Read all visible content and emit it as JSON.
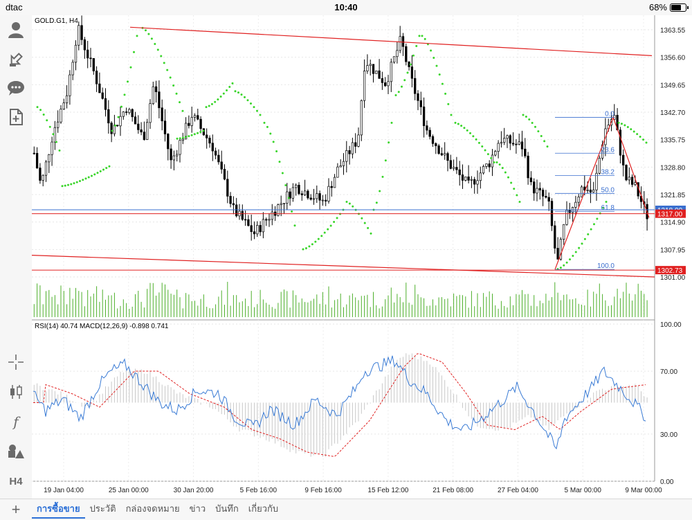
{
  "status_bar": {
    "carrier": "dtac",
    "time": "10:40",
    "battery": "68%",
    "battery_level": 0.68
  },
  "chart": {
    "symbol": "GOLD.G1, H4",
    "price_axis": [
      "1363.55",
      "1356.60",
      "1349.65",
      "1342.70",
      "1335.75",
      "1328.80",
      "1321.85",
      "1314.90",
      "1307.95",
      "1301.00"
    ],
    "price_tags": [
      {
        "value": 1318.0,
        "label": "1318.00",
        "color": "#3a6fcf"
      },
      {
        "value": 1317.0,
        "label": "1317.00",
        "color": "#e02020"
      },
      {
        "value": 1302.73,
        "label": "1302.73",
        "color": "#e02020"
      }
    ],
    "indicator_label": "RSI(14) 40.74 MACD(12,26,9) -0.898 0.741",
    "indicator_axis": [
      "100.00",
      "70.00",
      "30.00",
      "0.00"
    ],
    "time_axis": [
      "19 Jan 04:00",
      "25 Jan 00:00",
      "30 Jan 20:00",
      "5 Feb 16:00",
      "9 Feb 16:00",
      "15 Feb 12:00",
      "21 Feb 08:00",
      "27 Feb 04:00",
      "5 Mar 00:00",
      "9 Mar 00:00"
    ],
    "fibonacci": [
      "0.0",
      "23.6",
      "38.2",
      "50.0",
      "61.8",
      "100.0"
    ]
  },
  "tabs": [
    {
      "label": "การซื้อขาย",
      "active": true
    },
    {
      "label": "ประวัติ",
      "active": false
    },
    {
      "label": "กล่องจดหมาย",
      "active": false
    },
    {
      "label": "ข่าว",
      "active": false
    },
    {
      "label": "บันทึก",
      "active": false
    },
    {
      "label": "เกี่ยวกับ",
      "active": false
    }
  ],
  "sidebar_icons": [
    "account-icon",
    "upload-icon",
    "chat-icon",
    "document-icon",
    "crosshair-icon",
    "candlestick-icon",
    "function-icon",
    "shapes-icon",
    "timeframe-icon"
  ],
  "sidebar_timeframe": "H4",
  "sidebar_function_glyph": "f",
  "colors": {
    "candle": "#000000",
    "sar": "#39d52a",
    "trend": "#e02020",
    "fib": "#3a6fcf",
    "rsi": "#3a7bd5",
    "signal": "#e02020",
    "volume": "#4caf2a"
  }
}
